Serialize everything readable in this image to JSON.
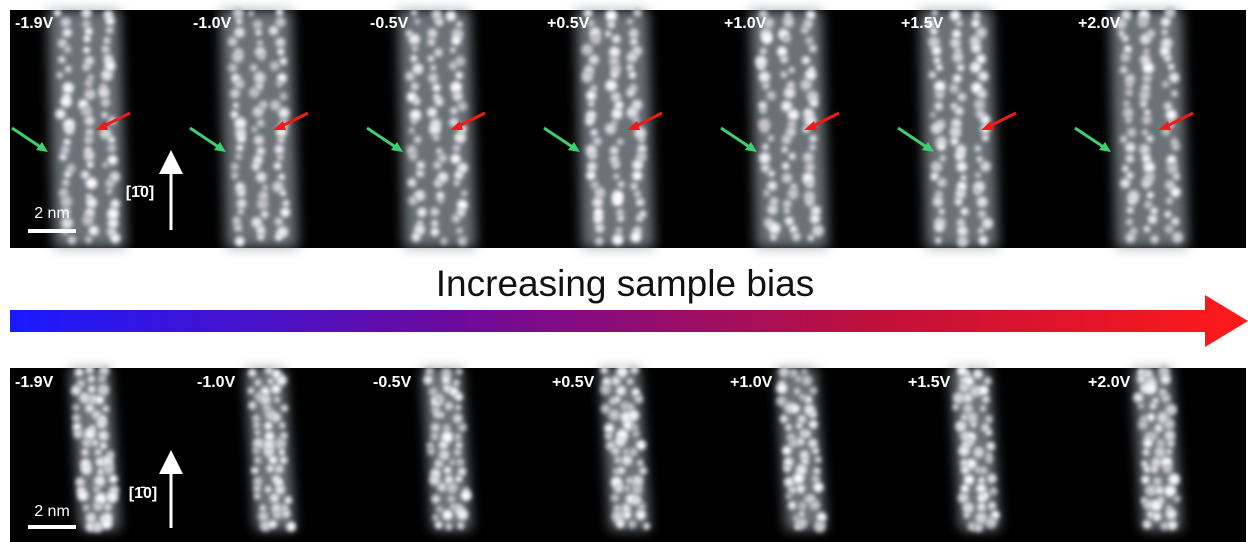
{
  "top_row": {
    "panels": [
      {
        "label": "-1.9V"
      },
      {
        "label": "-1.0V"
      },
      {
        "label": "-0.5V"
      },
      {
        "label": "+0.5V"
      },
      {
        "label": "+1.0V"
      },
      {
        "label": "+1.5V"
      },
      {
        "label": "+2.0V"
      }
    ],
    "scale_bar": "2 nm",
    "direction": "[1̄0]"
  },
  "bias_label": "Increasing sample bias",
  "bottom_row": {
    "panels": [
      {
        "label": "-1.9V"
      },
      {
        "label": "-1.0V"
      },
      {
        "label": "-0.5V"
      },
      {
        "label": "+0.5V"
      },
      {
        "label": "+1.0V"
      },
      {
        "label": "+1.5V"
      },
      {
        "label": "+2.0V"
      }
    ],
    "scale_bar": "2 nm",
    "direction": "[1̄0]"
  }
}
